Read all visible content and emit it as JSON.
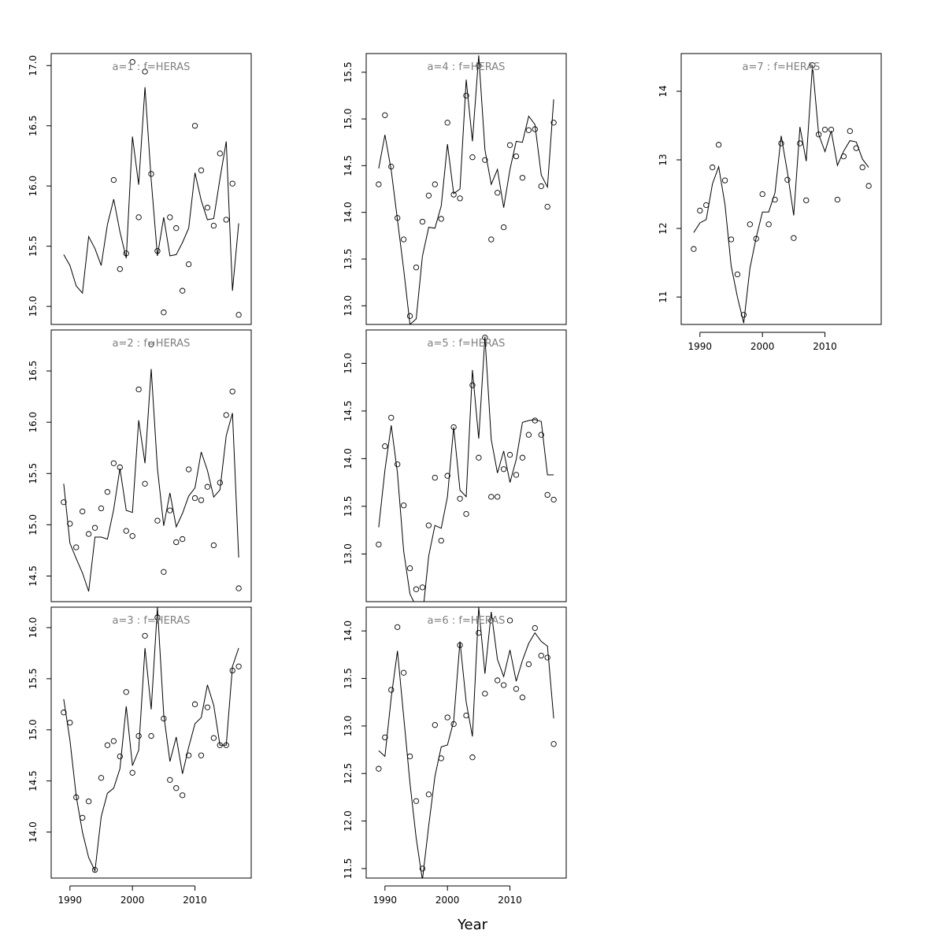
{
  "xlabel": "Year",
  "x_axis_ticks": [
    "1990",
    "2000",
    "2010"
  ],
  "colors": {
    "line": "#000000",
    "points": "#000000",
    "panel_title": "#808080",
    "frame": "#000000"
  },
  "chart_data": [
    {
      "type": "line+scatter",
      "title": "a=1 : f=HERAS",
      "xlim": [
        1987,
        2019
      ],
      "ylim": [
        14.85,
        17.1
      ],
      "yticks": [
        "15.0",
        "15.5",
        "16.0",
        "16.5",
        "17.0"
      ],
      "x": [
        1989,
        1990,
        1991,
        1992,
        1993,
        1994,
        1995,
        1996,
        1997,
        1998,
        1999,
        2000,
        2001,
        2002,
        2003,
        2004,
        2005,
        2006,
        2007,
        2008,
        2009,
        2010,
        2011,
        2012,
        2013,
        2014,
        2015,
        2016,
        2017
      ],
      "line": [
        15.43,
        15.34,
        15.17,
        15.11,
        15.58,
        15.48,
        15.34,
        15.68,
        15.89,
        15.62,
        15.4,
        16.41,
        16.01,
        16.82,
        16.05,
        15.42,
        15.74,
        15.42,
        15.43,
        15.53,
        15.65,
        16.11,
        15.88,
        15.72,
        15.73,
        16.06,
        16.37,
        15.13,
        15.69
      ],
      "points": [
        null,
        null,
        null,
        null,
        null,
        null,
        null,
        null,
        16.05,
        15.31,
        15.44,
        17.03,
        15.74,
        16.95,
        16.1,
        15.46,
        14.95,
        15.74,
        15.65,
        15.13,
        15.35,
        16.5,
        16.13,
        15.82,
        15.67,
        16.27,
        15.72,
        16.02,
        14.93
      ]
    },
    {
      "type": "line+scatter",
      "title": "a=2 : f=HERAS",
      "xlim": [
        1987,
        2019
      ],
      "ylim": [
        14.25,
        16.9
      ],
      "yticks": [
        "14.5",
        "15.0",
        "15.5",
        "16.0",
        "16.5"
      ],
      "x": [
        1989,
        1990,
        1991,
        1992,
        1993,
        1994,
        1995,
        1996,
        1997,
        1998,
        1999,
        2000,
        2001,
        2002,
        2003,
        2004,
        2005,
        2006,
        2007,
        2008,
        2009,
        2010,
        2011,
        2012,
        2013,
        2014,
        2015,
        2016,
        2017
      ],
      "line": [
        15.4,
        14.82,
        14.67,
        14.53,
        14.35,
        14.88,
        14.88,
        14.86,
        15.15,
        15.55,
        15.14,
        15.12,
        16.02,
        15.6,
        16.52,
        15.55,
        14.99,
        15.31,
        14.98,
        15.11,
        15.28,
        15.36,
        15.71,
        15.53,
        15.27,
        15.34,
        15.87,
        16.09,
        14.68
      ],
      "points": [
        15.22,
        15.01,
        14.78,
        15.13,
        14.91,
        14.97,
        15.16,
        15.32,
        15.6,
        15.56,
        14.94,
        14.89,
        16.32,
        15.4,
        16.76,
        15.04,
        14.54,
        15.14,
        14.83,
        14.86,
        15.54,
        15.26,
        15.24,
        15.37,
        14.8,
        15.41,
        16.07,
        16.3,
        14.38
      ]
    },
    {
      "type": "line+scatter",
      "title": "a=3 : f=HERAS",
      "xlim": [
        1987,
        2019
      ],
      "ylim": [
        13.55,
        16.2
      ],
      "yticks": [
        "14.0",
        "14.5",
        "15.0",
        "15.5",
        "16.0"
      ],
      "x": [
        1989,
        1990,
        1991,
        1992,
        1993,
        1994,
        1995,
        1996,
        1997,
        1998,
        1999,
        2000,
        2001,
        2002,
        2003,
        2004,
        2005,
        2006,
        2007,
        2008,
        2009,
        2010,
        2011,
        2012,
        2013,
        2014,
        2015,
        2016,
        2017
      ],
      "line": [
        15.3,
        14.9,
        14.35,
        14.0,
        13.75,
        13.62,
        14.15,
        14.38,
        14.43,
        14.62,
        15.23,
        14.65,
        14.8,
        15.8,
        15.2,
        16.2,
        15.15,
        14.69,
        14.93,
        14.57,
        14.83,
        15.06,
        15.12,
        15.44,
        15.24,
        14.85,
        14.85,
        15.62,
        15.8
      ],
      "points": [
        15.17,
        15.07,
        14.34,
        14.14,
        14.3,
        13.63,
        14.53,
        14.85,
        14.89,
        14.74,
        15.37,
        14.58,
        14.94,
        15.92,
        14.94,
        16.1,
        15.11,
        14.51,
        14.43,
        14.36,
        14.75,
        15.25,
        14.75,
        15.22,
        14.92,
        14.85,
        14.85,
        15.58,
        15.62
      ]
    },
    {
      "type": "line+scatter",
      "title": "a=4 : f=HERAS",
      "xlim": [
        1987,
        2019
      ],
      "ylim": [
        12.8,
        15.7
      ],
      "yticks": [
        "13.0",
        "13.5",
        "14.0",
        "14.5",
        "15.0",
        "15.5"
      ],
      "x": [
        1989,
        1990,
        1991,
        1992,
        1993,
        1994,
        1995,
        1996,
        1997,
        1998,
        1999,
        2000,
        2001,
        2002,
        2003,
        2004,
        2005,
        2006,
        2007,
        2008,
        2009,
        2010,
        2011,
        2012,
        2013,
        2014,
        2015,
        2016,
        2017
      ],
      "line": [
        14.47,
        14.83,
        14.45,
        13.92,
        13.39,
        12.8,
        12.86,
        13.53,
        13.84,
        13.83,
        14.07,
        14.73,
        14.2,
        14.25,
        15.42,
        14.76,
        15.68,
        14.67,
        14.3,
        14.46,
        14.05,
        14.46,
        14.76,
        14.75,
        15.03,
        14.94,
        14.4,
        14.27,
        15.21
      ],
      "points": [
        14.3,
        15.04,
        14.49,
        13.94,
        13.71,
        12.89,
        13.41,
        13.9,
        14.18,
        14.3,
        13.93,
        14.96,
        14.19,
        14.15,
        15.25,
        14.59,
        15.57,
        14.56,
        13.71,
        14.21,
        13.84,
        14.72,
        14.6,
        14.37,
        14.88,
        14.89,
        14.28,
        14.06,
        14.96
      ]
    },
    {
      "type": "line+scatter",
      "title": "a=5 : f=HERAS",
      "xlim": [
        1987,
        2019
      ],
      "ylim": [
        12.5,
        15.35
      ],
      "yticks": [
        "13.0",
        "13.5",
        "14.0",
        "14.5",
        "15.0"
      ],
      "x": [
        1989,
        1990,
        1991,
        1992,
        1993,
        1994,
        1995,
        1996,
        1997,
        1998,
        1999,
        2000,
        2001,
        2002,
        2003,
        2004,
        2005,
        2006,
        2007,
        2008,
        2009,
        2010,
        2011,
        2012,
        2013,
        2014,
        2015,
        2016,
        2017
      ],
      "line": [
        13.28,
        13.88,
        14.35,
        13.85,
        13.03,
        12.58,
        12.45,
        12.34,
        12.98,
        13.3,
        13.27,
        13.6,
        14.33,
        13.67,
        13.6,
        14.93,
        14.21,
        15.28,
        14.2,
        13.85,
        14.08,
        13.75,
        13.99,
        14.38,
        14.4,
        14.41,
        14.39,
        13.83,
        13.83
      ],
      "points": [
        13.1,
        14.13,
        14.43,
        13.94,
        13.51,
        12.85,
        12.63,
        12.65,
        13.3,
        13.8,
        13.14,
        13.82,
        14.33,
        13.58,
        13.42,
        14.77,
        14.01,
        15.27,
        13.6,
        13.6,
        13.89,
        14.04,
        13.83,
        14.01,
        14.25,
        14.4,
        14.25,
        13.62,
        13.57
      ]
    },
    {
      "type": "line+scatter",
      "title": "a=6 : f=HERAS",
      "xlim": [
        1987,
        2019
      ],
      "ylim": [
        11.4,
        14.25
      ],
      "yticks": [
        "11.5",
        "12.0",
        "12.5",
        "13.0",
        "13.5",
        "14.0"
      ],
      "x": [
        1989,
        1990,
        1991,
        1992,
        1993,
        1994,
        1995,
        1996,
        1997,
        1998,
        1999,
        2000,
        2001,
        2002,
        2003,
        2004,
        2005,
        2006,
        2007,
        2008,
        2009,
        2010,
        2011,
        2012,
        2013,
        2014,
        2015,
        2016,
        2017
      ],
      "line": [
        12.74,
        12.68,
        13.3,
        13.79,
        13.1,
        12.4,
        11.82,
        11.38,
        11.95,
        12.47,
        12.78,
        12.8,
        13.05,
        13.89,
        13.25,
        12.89,
        14.25,
        13.55,
        14.2,
        13.7,
        13.52,
        13.8,
        13.47,
        13.69,
        13.87,
        13.98,
        13.89,
        13.84,
        13.08
      ],
      "points": [
        12.55,
        12.88,
        13.38,
        14.04,
        13.56,
        12.68,
        12.21,
        11.5,
        12.28,
        13.01,
        12.66,
        13.09,
        13.02,
        13.85,
        13.11,
        12.67,
        13.98,
        13.34,
        14.11,
        13.48,
        13.43,
        14.11,
        13.39,
        13.3,
        13.65,
        14.03,
        13.74,
        13.72,
        12.81
      ]
    },
    {
      "type": "line+scatter",
      "title": "a=7 : f=HERAS",
      "xlim": [
        1987,
        2019
      ],
      "ylim": [
        10.6,
        14.55
      ],
      "yticks": [
        "11",
        "12",
        "13",
        "14"
      ],
      "x": [
        1989,
        1990,
        1991,
        1992,
        1993,
        1994,
        1995,
        1996,
        1997,
        1998,
        1999,
        2000,
        2001,
        2002,
        2003,
        2004,
        2005,
        2006,
        2007,
        2008,
        2009,
        2010,
        2011,
        2012,
        2013,
        2014,
        2015,
        2016,
        2017
      ],
      "line": [
        11.94,
        12.08,
        12.13,
        12.65,
        12.9,
        12.35,
        11.45,
        11.0,
        10.62,
        11.42,
        11.87,
        12.24,
        12.24,
        12.52,
        13.35,
        12.82,
        12.19,
        13.48,
        12.98,
        14.38,
        13.37,
        13.12,
        13.42,
        12.92,
        13.13,
        13.28,
        13.26,
        13.01,
        12.89
      ],
      "points": [
        11.7,
        12.26,
        12.34,
        12.89,
        13.22,
        12.7,
        11.84,
        11.33,
        10.74,
        12.06,
        11.85,
        12.5,
        12.06,
        12.42,
        13.24,
        12.71,
        11.86,
        13.24,
        12.41,
        14.38,
        13.37,
        13.44,
        13.44,
        12.42,
        13.05,
        13.42,
        13.17,
        12.89,
        12.62
      ]
    }
  ]
}
